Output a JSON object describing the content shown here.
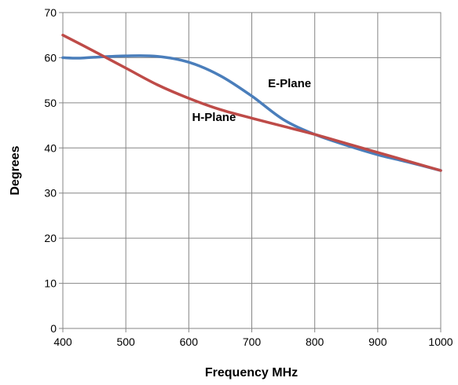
{
  "chart_data": {
    "type": "line",
    "title": "",
    "xlabel": "Frequency MHz",
    "ylabel": "Degrees",
    "xlim": [
      400,
      1000
    ],
    "ylim": [
      0,
      70
    ],
    "xticks": [
      400,
      500,
      600,
      700,
      800,
      900,
      1000
    ],
    "yticks": [
      0,
      10,
      20,
      30,
      40,
      50,
      60,
      70
    ],
    "grid": true,
    "legend": "none",
    "series": [
      {
        "name": "E-Plane",
        "color": "#4a7ebb",
        "x": [
          400,
          425,
          450,
          500,
          550,
          600,
          650,
          700,
          750,
          800,
          850,
          900,
          950,
          1000
        ],
        "y": [
          60,
          59.9,
          60.1,
          60.4,
          60.3,
          59,
          56,
          51.5,
          46.3,
          43,
          40.6,
          38.5,
          36.8,
          35
        ]
      },
      {
        "name": "H-Plane",
        "color": "#be4b48",
        "x": [
          400,
          450,
          500,
          550,
          600,
          650,
          700,
          750,
          800,
          850,
          900,
          950,
          1000
        ],
        "y": [
          65,
          61.4,
          57.7,
          54,
          51,
          48.5,
          46.6,
          44.8,
          43,
          41,
          39,
          37,
          35
        ]
      }
    ],
    "annotations": [
      {
        "text": "E-Plane",
        "x": 760,
        "y": 53.5
      },
      {
        "text": "H-Plane",
        "x": 640,
        "y": 46
      }
    ]
  }
}
